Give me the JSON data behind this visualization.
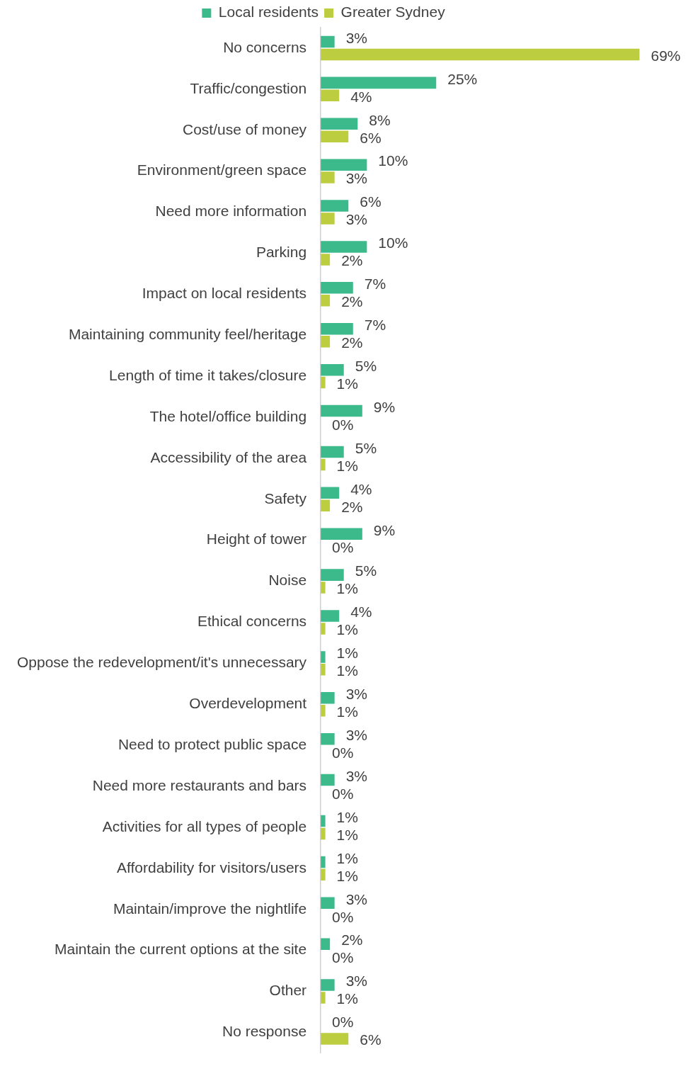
{
  "chart_data": {
    "type": "bar",
    "orientation": "horizontal",
    "legend": "top",
    "tick_labels": "y",
    "categories": [
      "No concerns",
      "Traffic/congestion",
      "Cost/use of money",
      "Environment/green space",
      "Need more information",
      "Parking",
      "Impact on local residents",
      "Maintaining community feel/heritage",
      "Length of time it takes/closure",
      "The hotel/office building",
      "Accessibility of the area",
      "Safety",
      "Height of tower",
      "Noise",
      "Ethical concerns",
      "Oppose the redevelopment/it's unnecessary",
      "Overdevelopment",
      "Need to protect public space",
      "Need more restaurants and bars",
      "Activities for all types of people",
      "Affordability for visitors/users",
      "Maintain/improve the nightlife",
      "Maintain the current options at the site",
      "Other",
      "No response"
    ],
    "series": [
      {
        "name": "Local residents",
        "color": "#3dba8c",
        "values": [
          3,
          25,
          8,
          10,
          6,
          10,
          7,
          7,
          5,
          9,
          5,
          4,
          9,
          5,
          4,
          1,
          3,
          3,
          3,
          1,
          1,
          3,
          2,
          3,
          0
        ],
        "value_labels": [
          "3%",
          "25%",
          "8%",
          "10%",
          "6%",
          "10%",
          "7%",
          "7%",
          "5%",
          "9%",
          "5%",
          "4%",
          "9%",
          "5%",
          "4%",
          "1%",
          "3%",
          "3%",
          "3%",
          "1%",
          "1%",
          "3%",
          "2%",
          "3%",
          "0%"
        ]
      },
      {
        "name": "Greater Sydney",
        "color": "#bccd3f",
        "values": [
          69,
          4,
          6,
          3,
          3,
          2,
          2,
          2,
          1,
          0,
          1,
          2,
          0,
          1,
          1,
          1,
          1,
          0,
          0,
          1,
          1,
          0,
          0,
          1,
          6
        ],
        "value_labels": [
          "69%",
          "4%",
          "6%",
          "3%",
          "3%",
          "2%",
          "2%",
          "2%",
          "1%",
          "0%",
          "1%",
          "2%",
          "0%",
          "1%",
          "1%",
          "1%",
          "1%",
          "0%",
          "0%",
          "1%",
          "1%",
          "0%",
          "0%",
          "1%",
          "6%"
        ]
      }
    ]
  }
}
